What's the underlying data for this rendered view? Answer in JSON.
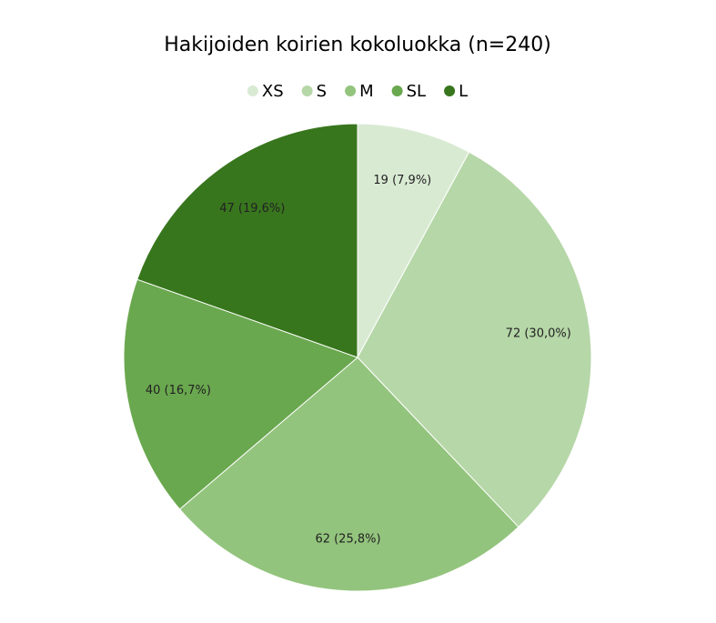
{
  "chart_data": {
    "type": "pie",
    "title": "Hakijoiden koirien kokoluokka (n=240)",
    "categories": [
      "XS",
      "S",
      "M",
      "SL",
      "L"
    ],
    "values": [
      19,
      72,
      62,
      40,
      47
    ],
    "value_labels": [
      "19 (7,9%)",
      "72 (30,0%)",
      "62 (25,8%)",
      "40 (16,7%)",
      "47 (19,6%)"
    ],
    "colors": [
      "#d9ead3",
      "#b6d7a8",
      "#93c47d",
      "#6aa84f",
      "#38761d"
    ]
  }
}
